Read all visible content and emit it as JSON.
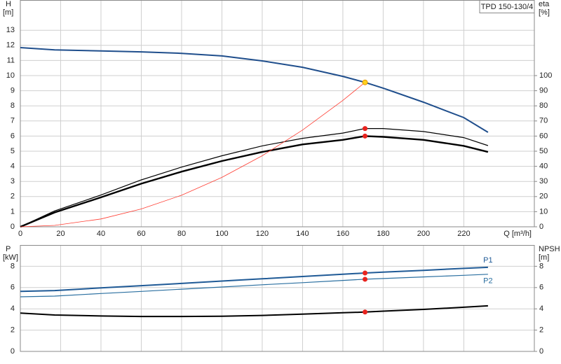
{
  "chart_data": [
    {
      "type": "line",
      "title": "TPD 150-130/4",
      "ylabel": "H",
      "yunit": "[m]",
      "y2label": "eta",
      "y2unit": "[%]",
      "xlabel": "Q [m³/h]",
      "x": [
        0,
        17,
        40,
        60,
        80,
        100,
        120,
        140,
        160,
        171,
        180,
        200,
        220,
        232
      ],
      "xlim": [
        0,
        255
      ],
      "xticks": [
        0,
        20,
        40,
        60,
        80,
        100,
        120,
        140,
        160,
        180,
        200,
        220
      ],
      "xtick_labels": true,
      "ylim": [
        0,
        15
      ],
      "yticks": [
        0,
        1,
        2,
        3,
        4,
        5,
        6,
        7,
        8,
        9,
        10,
        11,
        12,
        13
      ],
      "y2lim": [
        0,
        150
      ],
      "y2ticks": [
        0,
        10,
        20,
        30,
        40,
        50,
        60,
        70,
        80,
        90,
        100
      ],
      "grid": true,
      "duty_x": 171,
      "series": [
        {
          "color": "#1f4e8c",
          "width": 2,
          "axis": "y",
          "marker": true,
          "marker_color": "#ffd21f",
          "values": [
            11.85,
            11.7,
            11.63,
            11.57,
            11.47,
            11.3,
            10.97,
            10.55,
            9.95,
            9.55,
            9.17,
            8.24,
            7.22,
            6.25
          ]
        },
        {
          "color": "#000000",
          "width": 1.2,
          "axis": "y2",
          "marker": true,
          "marker_color": "#e8231e",
          "values": [
            0,
            10.5,
            21,
            31,
            39.5,
            47,
            53.5,
            58.5,
            62,
            65,
            65,
            63,
            59,
            53.7
          ]
        },
        {
          "color": "#000000",
          "width": 2.4,
          "axis": "y2",
          "marker": true,
          "marker_color": "#e8231e",
          "values": [
            0,
            9.5,
            19.5,
            28.5,
            36.5,
            43.5,
            49.5,
            54.5,
            57.5,
            60,
            59.5,
            57.5,
            53.5,
            49.5
          ]
        },
        {
          "color": "#ff3b30",
          "width": 0.8,
          "axis": "y",
          "marker": false,
          "values": [
            0,
            0.094,
            0.52,
            1.18,
            2.09,
            3.27,
            4.7,
            6.4,
            8.36,
            9.55,
            null,
            null,
            null,
            null
          ]
        }
      ]
    },
    {
      "type": "line",
      "ylabel": "P",
      "yunit": "[kW]",
      "y2label": "NPSH",
      "y2unit": "[m]",
      "x": [
        0,
        17,
        40,
        60,
        80,
        100,
        120,
        140,
        160,
        171,
        180,
        200,
        220,
        232
      ],
      "xlim": [
        0,
        255
      ],
      "xticks": [
        0,
        20,
        40,
        60,
        80,
        100,
        120,
        140,
        160,
        180,
        200,
        220
      ],
      "xtick_labels": false,
      "ylim": [
        0,
        10
      ],
      "yticks": [
        0,
        2,
        4,
        6,
        8
      ],
      "y2lim": [
        0,
        10
      ],
      "y2ticks": [
        0,
        2,
        4,
        6,
        8
      ],
      "grid": true,
      "duty_x": 171,
      "series": [
        {
          "name": "P1",
          "color": "#1f5a96",
          "width": 2,
          "axis": "y",
          "marker": true,
          "marker_color": "#e8231e",
          "values": [
            5.64,
            5.72,
            5.97,
            6.18,
            6.39,
            6.61,
            6.82,
            7.04,
            7.25,
            7.37,
            7.45,
            7.62,
            7.8,
            7.9
          ]
        },
        {
          "name": "P2",
          "color": "#2a6fa0",
          "width": 1.2,
          "axis": "y",
          "marker": true,
          "marker_color": "#e8231e",
          "values": [
            5.13,
            5.2,
            5.44,
            5.64,
            5.85,
            6.05,
            6.26,
            6.46,
            6.67,
            6.78,
            6.85,
            7.0,
            7.15,
            7.25
          ]
        },
        {
          "color": "#000000",
          "width": 2,
          "axis": "y2",
          "marker": true,
          "marker_color": "#e8231e",
          "values": [
            3.6,
            3.42,
            3.33,
            3.28,
            3.28,
            3.3,
            3.38,
            3.5,
            3.63,
            3.7,
            3.78,
            3.95,
            4.15,
            4.28
          ]
        }
      ]
    }
  ]
}
